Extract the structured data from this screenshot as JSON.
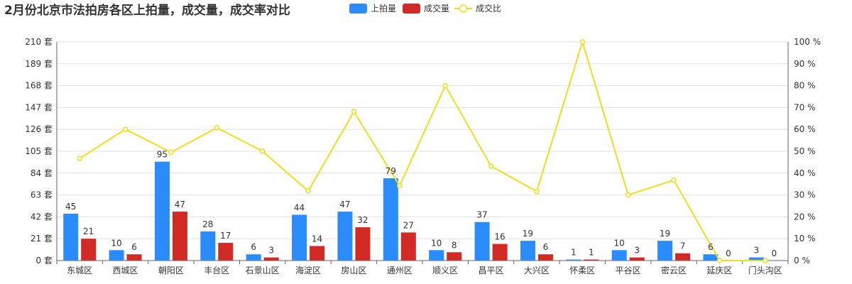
{
  "chart_data": {
    "type": "bar",
    "title": "2月份北京市法拍房各区上拍量，成交量，成交率对比",
    "categories": [
      "东城区",
      "西城区",
      "朝阳区",
      "丰台区",
      "石景山区",
      "海淀区",
      "房山区",
      "通州区",
      "顺义区",
      "昌平区",
      "大兴区",
      "怀柔区",
      "平谷区",
      "密云区",
      "延庆区",
      "门头沟区"
    ],
    "series": [
      {
        "name": "上拍量",
        "type": "bar",
        "axis": "left",
        "color": "#2a8cfa",
        "values": [
          45,
          10,
          95,
          28,
          6,
          44,
          47,
          79,
          10,
          37,
          19,
          1,
          10,
          19,
          6,
          3
        ]
      },
      {
        "name": "成交量",
        "type": "bar",
        "axis": "left",
        "color": "#d22b26",
        "values": [
          21,
          6,
          47,
          17,
          3,
          14,
          32,
          27,
          8,
          16,
          6,
          1,
          3,
          7,
          0,
          0
        ]
      },
      {
        "name": "成交比",
        "type": "line",
        "axis": "right",
        "color": "#f5dc1a",
        "values": [
          46.7,
          60,
          49.5,
          60.7,
          50,
          31.8,
          68.1,
          34.2,
          80,
          43.2,
          31.6,
          100,
          30,
          36.8,
          0,
          0
        ]
      }
    ],
    "y_left": {
      "min": 0,
      "max": 210,
      "ticks": [
        0,
        21,
        42,
        63,
        84,
        105,
        126,
        147,
        168,
        189,
        210
      ],
      "unit": "套"
    },
    "y_right": {
      "min": 0,
      "max": 100,
      "ticks": [
        0,
        10,
        20,
        30,
        40,
        50,
        60,
        70,
        80,
        90,
        100
      ],
      "unit": "%"
    },
    "grid": true,
    "legend": "top-center"
  }
}
